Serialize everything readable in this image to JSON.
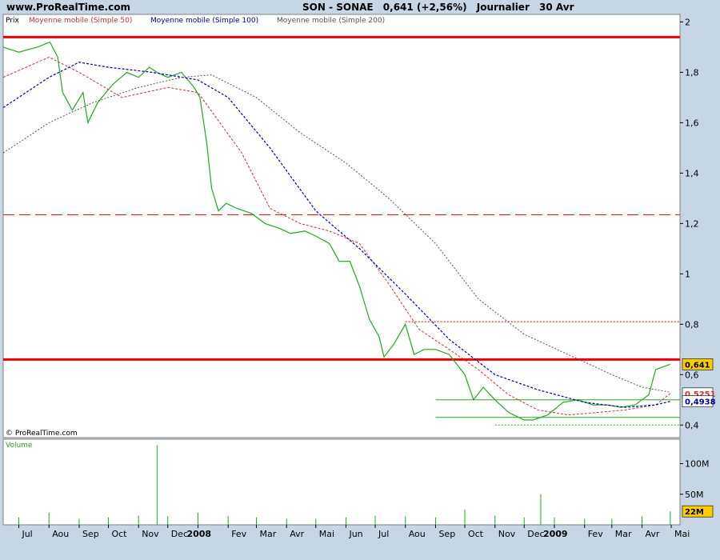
{
  "header": {
    "site": "www.ProRealTime.com",
    "symbol": "SON - SONAE",
    "last": "0,641 (+2,56%)",
    "period": "Journalier",
    "date": "30 Avr"
  },
  "legend": {
    "price": "Prix",
    "ma50": "Moyenne mobile (Simple 50)",
    "ma100": "Moyenne mobile (Simple 100)",
    "ma200": "Moyenne mobile (Simple 200)"
  },
  "copyright": "© ProRealTime.com",
  "volume_label": "Volume",
  "colors": {
    "ma50": "#cc3333",
    "ma100": "#0000aa",
    "ma200": "#555555",
    "price": "#22aa22",
    "resistance": "#ee0000",
    "support": "#22aa22",
    "last_tag": "#ffcc00"
  },
  "chart_data": {
    "type": "line",
    "x_axis": {
      "labels": [
        "Jul",
        "Aou",
        "Sep",
        "Oct",
        "Nov",
        "Dec",
        "2008",
        "Fev",
        "Mar",
        "Avr",
        "Mai",
        "Jun",
        "Jul",
        "Aou",
        "Sep",
        "Oct",
        "Nov",
        "Dec",
        "2009",
        "Fev",
        "Mar",
        "Avr",
        "Mai"
      ],
      "start": "2007-06-15",
      "end": "2009-05-10"
    },
    "price_axis": {
      "ticks": [
        0.4,
        0.6,
        0.8,
        1.0,
        1.2,
        1.4,
        1.6,
        1.8,
        2.0
      ],
      "tick_labels": [
        "0,4",
        "0,6",
        "0,8",
        "1",
        "1,2",
        "1,4",
        "1,6",
        "1,8",
        "2"
      ],
      "ylim": [
        0.35,
        2.03
      ]
    },
    "volume_axis": {
      "ticks": [
        50,
        100
      ],
      "tick_labels": [
        "50M",
        "100M"
      ],
      "ylim": [
        0,
        140
      ]
    },
    "series": [
      {
        "name": "Prix",
        "x": [
          "2007-06-15",
          "2007-07-01",
          "2007-07-20",
          "2007-08-02",
          "2007-08-10",
          "2007-08-15",
          "2007-08-25",
          "2007-09-05",
          "2007-09-10",
          "2007-09-20",
          "2007-10-05",
          "2007-10-20",
          "2007-11-01",
          "2007-11-12",
          "2007-11-20",
          "2007-12-01",
          "2007-12-15",
          "2007-12-28",
          "2008-01-03",
          "2008-01-10",
          "2008-01-15",
          "2008-01-22",
          "2008-01-30",
          "2008-02-10",
          "2008-02-25",
          "2008-03-10",
          "2008-03-25",
          "2008-04-05",
          "2008-04-20",
          "2008-05-01",
          "2008-05-15",
          "2008-05-25",
          "2008-06-05",
          "2008-06-15",
          "2008-06-25",
          "2008-07-05",
          "2008-07-10",
          "2008-07-20",
          "2008-08-01",
          "2008-08-10",
          "2008-08-20",
          "2008-09-01",
          "2008-09-15",
          "2008-10-01",
          "2008-10-10",
          "2008-10-20",
          "2008-11-01",
          "2008-11-15",
          "2008-12-01",
          "2008-12-10",
          "2008-12-25",
          "2009-01-10",
          "2009-01-25",
          "2009-02-10",
          "2009-02-25",
          "2009-03-10",
          "2009-03-25",
          "2009-04-01",
          "2009-04-08",
          "2009-04-15",
          "2009-04-22",
          "2009-04-30"
        ],
        "values": [
          1.9,
          1.88,
          1.9,
          1.92,
          1.86,
          1.72,
          1.65,
          1.72,
          1.6,
          1.68,
          1.75,
          1.8,
          1.78,
          1.82,
          1.8,
          1.78,
          1.8,
          1.74,
          1.7,
          1.52,
          1.34,
          1.25,
          1.28,
          1.26,
          1.24,
          1.2,
          1.18,
          1.16,
          1.17,
          1.15,
          1.12,
          1.05,
          1.05,
          0.95,
          0.82,
          0.75,
          0.67,
          0.72,
          0.8,
          0.68,
          0.7,
          0.7,
          0.68,
          0.6,
          0.5,
          0.55,
          0.5,
          0.45,
          0.42,
          0.42,
          0.44,
          0.49,
          0.5,
          0.48,
          0.48,
          0.47,
          0.48,
          0.5,
          0.52,
          0.62,
          0.63,
          0.641
        ]
      },
      {
        "name": "Moyenne mobile (Simple 50)",
        "x": [
          "2007-06-15",
          "2007-08-01",
          "2007-09-01",
          "2007-10-15",
          "2007-12-01",
          "2008-01-01",
          "2008-02-15",
          "2008-03-15",
          "2008-04-15",
          "2008-05-15",
          "2008-06-15",
          "2008-07-15",
          "2008-08-15",
          "2008-09-15",
          "2008-10-15",
          "2008-11-15",
          "2008-12-15",
          "2009-01-15",
          "2009-02-15",
          "2009-03-15",
          "2009-04-15",
          "2009-04-30"
        ],
        "values": [
          1.78,
          1.86,
          1.8,
          1.7,
          1.74,
          1.72,
          1.48,
          1.26,
          1.2,
          1.17,
          1.12,
          0.96,
          0.78,
          0.7,
          0.62,
          0.52,
          0.46,
          0.44,
          0.45,
          0.46,
          0.48,
          0.5251
        ]
      },
      {
        "name": "Moyenne mobile (Simple 100)",
        "x": [
          "2007-06-15",
          "2007-08-01",
          "2007-09-01",
          "2007-10-01",
          "2007-11-15",
          "2008-01-01",
          "2008-02-01",
          "2008-03-15",
          "2008-05-01",
          "2008-06-15",
          "2008-08-01",
          "2008-09-15",
          "2008-11-01",
          "2008-12-15",
          "2009-02-01",
          "2009-03-15",
          "2009-04-15",
          "2009-04-30"
        ],
        "values": [
          1.66,
          1.78,
          1.84,
          1.82,
          1.8,
          1.77,
          1.7,
          1.5,
          1.25,
          1.1,
          0.92,
          0.74,
          0.6,
          0.54,
          0.49,
          0.47,
          0.48,
          0.4938
        ]
      },
      {
        "name": "Moyenne mobile (Simple 200)",
        "x": [
          "2007-06-15",
          "2007-08-01",
          "2007-09-15",
          "2007-11-01",
          "2007-12-15",
          "2008-01-15",
          "2008-03-01",
          "2008-04-15",
          "2008-06-01",
          "2008-07-15",
          "2008-09-01",
          "2008-10-15",
          "2008-12-01",
          "2009-01-15",
          "2009-03-01",
          "2009-04-01",
          "2009-04-30"
        ],
        "values": [
          1.48,
          1.6,
          1.68,
          1.74,
          1.78,
          1.79,
          1.7,
          1.56,
          1.44,
          1.3,
          1.12,
          0.9,
          0.76,
          0.68,
          0.6,
          0.55,
          0.53
        ]
      }
    ],
    "volume": {
      "x": [
        "2007-07-01",
        "2007-08-01",
        "2007-09-01",
        "2007-10-01",
        "2007-11-01",
        "2007-11-20",
        "2007-12-01",
        "2008-01-01",
        "2008-02-01",
        "2008-03-01",
        "2008-04-01",
        "2008-05-01",
        "2008-06-01",
        "2008-07-01",
        "2008-08-01",
        "2008-09-01",
        "2008-10-01",
        "2008-11-01",
        "2008-12-01",
        "2008-12-18",
        "2009-01-01",
        "2009-02-01",
        "2009-03-01",
        "2009-04-01",
        "2009-04-30"
      ],
      "values": [
        12,
        20,
        10,
        12,
        15,
        130,
        14,
        20,
        14,
        12,
        10,
        10,
        12,
        15,
        14,
        12,
        25,
        15,
        12,
        50,
        12,
        10,
        10,
        14,
        22
      ]
    },
    "levels": [
      {
        "type": "resistance",
        "value": 1.94,
        "style": "solid",
        "thickness": "thick",
        "color": "#ee0000"
      },
      {
        "type": "resistance",
        "value": 1.235,
        "style": "dashed",
        "color": "#dd0000"
      },
      {
        "type": "resistance",
        "value": 0.81,
        "style": "dotted",
        "color": "#dd0000",
        "from": "2008-08-01"
      },
      {
        "type": "resistance",
        "value": 0.66,
        "style": "solid",
        "thickness": "thick",
        "color": "#ee0000"
      },
      {
        "type": "support",
        "value": 0.5,
        "style": "solid",
        "color": "#22aa22",
        "from": "2008-09-01"
      },
      {
        "type": "support",
        "value": 0.43,
        "style": "solid",
        "color": "#22aa22",
        "from": "2008-09-01"
      },
      {
        "type": "support",
        "value": 0.4,
        "style": "dotted",
        "color": "#22aa22",
        "from": "2008-11-01"
      }
    ],
    "tags": [
      {
        "label": "0,641",
        "value": 0.641,
        "color": "#ffcc00",
        "text_color": "#000000"
      },
      {
        "label": "0,5251",
        "value": 0.5251,
        "color": "#ffffff",
        "text_color": "#cc3333"
      },
      {
        "label": "0,4938",
        "value": 0.4938,
        "color": "#ffffff",
        "text_color": "#0000aa"
      },
      {
        "label": "22M",
        "value": 22,
        "axis": "volume",
        "color": "#ffcc00",
        "text_color": "#000000"
      }
    ]
  }
}
